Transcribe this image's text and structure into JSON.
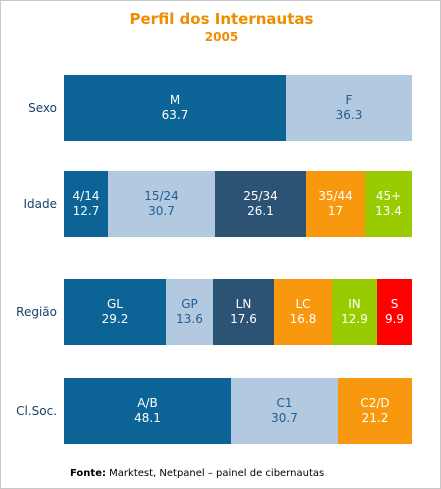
{
  "title": "Perfil dos Internautas",
  "subtitle": "2005",
  "source": {
    "label": "Fonte:",
    "text": "Marktest, Netpanel – painel de cibernautas"
  },
  "colors": {
    "navy": "#0c6496",
    "light_blue": "#b3c9df",
    "slate": "#2c5274",
    "orange": "#f8980f",
    "green": "#99cc00",
    "red": "#ff0000",
    "title": "#f08c00"
  },
  "chart_data": {
    "type": "bar",
    "orientation": "horizontal",
    "stacked": true,
    "title": "Perfil dos Internautas",
    "subtitle": "2005",
    "xlim": [
      0,
      100
    ],
    "categories": [
      "Sexo",
      "Idade",
      "Região",
      "Cl.Soc."
    ],
    "rows": [
      {
        "label": "Sexo",
        "segments": [
          {
            "name": "M",
            "value": 63.7,
            "display": "63.7",
            "color": "#0c6496",
            "text_color": "#ffffff"
          },
          {
            "name": "F",
            "value": 36.3,
            "display": "36.3",
            "color": "#b3c9df",
            "text_color": "#1f5e96"
          }
        ]
      },
      {
        "label": "Idade",
        "segments": [
          {
            "name": "4/14",
            "value": 12.7,
            "display": "12.7",
            "color": "#0c6496",
            "text_color": "#ffffff"
          },
          {
            "name": "15/24",
            "value": 30.7,
            "display": "30.7",
            "color": "#b3c9df",
            "text_color": "#1f5e96"
          },
          {
            "name": "25/34",
            "value": 26.1,
            "display": "26.1",
            "color": "#2c5274",
            "text_color": "#ffffff"
          },
          {
            "name": "35/44",
            "value": 17,
            "display": "17",
            "color": "#f8980f",
            "text_color": "#ffffff"
          },
          {
            "name": "45+",
            "value": 13.4,
            "display": "13.4",
            "color": "#99cc00",
            "text_color": "#ffffff"
          }
        ]
      },
      {
        "label": "Região",
        "segments": [
          {
            "name": "GL",
            "value": 29.2,
            "display": "29.2",
            "color": "#0c6496",
            "text_color": "#ffffff"
          },
          {
            "name": "GP",
            "value": 13.6,
            "display": "13.6",
            "color": "#b3c9df",
            "text_color": "#1f5e96"
          },
          {
            "name": "LN",
            "value": 17.6,
            "display": "17.6",
            "color": "#2c5274",
            "text_color": "#ffffff"
          },
          {
            "name": "LC",
            "value": 16.8,
            "display": "16.8",
            "color": "#f8980f",
            "text_color": "#ffffff"
          },
          {
            "name": "IN",
            "value": 12.9,
            "display": "12.9",
            "color": "#99cc00",
            "text_color": "#ffffff"
          },
          {
            "name": "S",
            "value": 9.9,
            "display": "9.9",
            "color": "#ff0000",
            "text_color": "#ffffff"
          }
        ]
      },
      {
        "label": "Cl.Soc.",
        "segments": [
          {
            "name": "A/B",
            "value": 48.1,
            "display": "48.1",
            "color": "#0c6496",
            "text_color": "#ffffff"
          },
          {
            "name": "C1",
            "value": 30.7,
            "display": "30.7",
            "color": "#b3c9df",
            "text_color": "#1f5e96"
          },
          {
            "name": "C2/D",
            "value": 21.2,
            "display": "21.2",
            "color": "#f8980f",
            "text_color": "#ffffff"
          }
        ]
      }
    ]
  }
}
